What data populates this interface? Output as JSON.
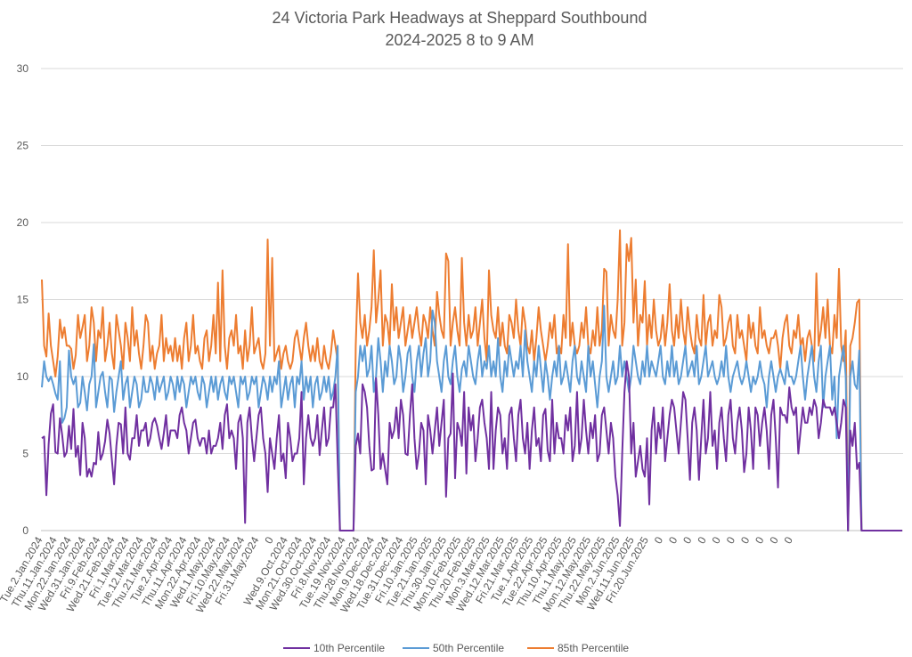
{
  "chart_data": {
    "type": "line",
    "title": "24 Victoria Park Headways at Sheppard Southbound",
    "subtitle": "2024-2025 8 to 9 AM",
    "xlabel": "",
    "ylabel": "",
    "ylim": [
      0,
      30
    ],
    "yticks": [
      0,
      5,
      10,
      15,
      20,
      25,
      30
    ],
    "grid": true,
    "legend_position": "bottom",
    "x_tick_labels": [
      "Tue.2.Jan.2024",
      "Thu.11.Jan.2024",
      "Mon.22.Jan.2024",
      "Wed.31.Jan.2024",
      "Fri.9.Feb.2024",
      "Wed.21.Feb.2024",
      "Fri.1.Mar.2024",
      "Tue.12.Mar.2024",
      "Thu.21.Mar.2024",
      "Tue.2.Apr.2024",
      "Thu.11.Apr.2024",
      "Mon.22.Apr.2024",
      "Wed.1.May.2024",
      "Fri.10.May.2024",
      "Wed.22.May.2024",
      "Fri.31.May.2024",
      "0",
      "Wed.9.Oct.2024",
      "Mon.21.Oct.2024",
      "Wed.30.Oct.2024",
      "Fri.8.Nov.2024",
      "Tue.19.Nov.2024",
      "Thu.28.Nov.2024",
      "Mon.9.Dec.2024",
      "Wed.18.Dec.2024",
      "Tue.31.Dec.2024",
      "Fri.10.Jan.2025",
      "Tue.21.Jan.2025",
      "Thu.30.Jan.2025",
      "Mon.10.Feb.2025",
      "Thu.20.Feb.2025",
      "Mon.3.Mar.2025",
      "Wed.12.Mar.2025",
      "Fri.21.Mar.2025",
      "Tue.1.Apr.2025",
      "Tue.22.Apr.2025",
      "Thu.10.Apr.2025",
      "Thu.1.May.2025",
      "Mon.12.May.2025",
      "Thu.22.May.2025",
      "Mon.2.Jun.2025",
      "Wed.11.Jun.2025",
      "Fri.20.Jun.2025",
      "0",
      "0",
      "0",
      "0",
      "0",
      "0",
      "0",
      "0",
      "0",
      "0"
    ],
    "series": [
      {
        "name": "10th Percentile",
        "color": "#7030A0",
        "values": [
          6.0,
          6.1,
          2.3,
          5.6,
          7.6,
          8.2,
          5.1,
          5.0,
          7.3,
          6.2,
          4.8,
          5.1,
          6.8,
          5.3,
          7.9,
          4.8,
          5.5,
          3.6,
          7.0,
          6.0,
          3.5,
          4.0,
          3.5,
          4.4,
          4.3,
          6.4,
          4.6,
          5.0,
          5.8,
          7.2,
          6.3,
          4.6,
          3.0,
          5.5,
          7.0,
          6.9,
          5.0,
          8.0,
          5.0,
          4.6,
          6.0,
          6.0,
          7.5,
          5.5,
          6.5,
          6.5,
          7.0,
          5.5,
          6.0,
          7.0,
          7.3,
          6.8,
          6.0,
          5.3,
          6.3,
          7.5,
          5.5,
          6.5,
          6.5,
          6.5,
          6.0,
          7.5,
          8.0,
          7.0,
          6.5,
          5.0,
          6.0,
          7.0,
          7.2,
          6.0,
          5.5,
          6.0,
          6.0,
          5.0,
          6.5,
          5.0,
          5.5,
          5.5,
          6.0,
          7.0,
          5.3,
          7.5,
          8.2,
          6.0,
          6.5,
          6.0,
          4.0,
          7.0,
          7.5,
          6.0,
          0.5,
          7.0,
          8.0,
          6.0,
          4.5,
          6.0,
          7.5,
          8.0,
          6.0,
          5.0,
          2.5,
          6.0,
          5.0,
          4.0,
          6.0,
          7.5,
          4.5,
          5.0,
          3.4,
          7.0,
          6.0,
          4.5,
          5.0,
          5.0,
          6.0,
          9.0,
          3.0,
          6.0,
          7.5,
          6.0,
          5.5,
          6.0,
          7.5,
          4.9,
          6.5,
          8.0,
          5.5,
          6.0,
          8.0,
          8.0,
          9.5,
          4.5,
          0.0,
          0.0,
          0.0,
          0.0,
          0.0,
          0.0,
          0.0,
          5.5,
          6.3,
          5.0,
          9.5,
          9.0,
          8.0,
          5.5,
          3.9,
          4.0,
          9.9,
          7.5,
          4.0,
          5.0,
          4.0,
          3.0,
          7.0,
          6.0,
          6.5,
          8.0,
          6.0,
          8.5,
          7.5,
          5.0,
          4.9,
          7.5,
          9.5,
          6.0,
          4.0,
          5.0,
          7.0,
          6.5,
          3.0,
          7.5,
          6.5,
          5.0,
          6.5,
          8.0,
          5.5,
          7.0,
          8.5,
          2.2,
          6.0,
          6.3,
          10.2,
          3.4,
          7.0,
          6.5,
          5.5,
          9.0,
          3.7,
          8.0,
          6.5,
          7.5,
          4.5,
          6.0,
          8.0,
          8.5,
          7.0,
          6.0,
          4.0,
          9.0,
          4.0,
          6.5,
          8.0,
          7.5,
          5.0,
          6.0,
          4.0,
          7.5,
          8.0,
          6.0,
          4.5,
          7.5,
          8.5,
          6.0,
          5.0,
          7.0,
          4.0,
          6.5,
          8.0,
          5.5,
          6.0,
          4.5,
          7.5,
          7.9,
          5.2,
          4.5,
          8.5,
          5.0,
          7.0,
          6.0,
          6.0,
          5.0,
          7.5,
          6.5,
          8.0,
          4.5,
          5.5,
          9.0,
          5.0,
          6.0,
          8.5,
          6.5,
          5.0,
          7.0,
          6.0,
          7.5,
          4.5,
          5.0,
          7.5,
          8.0,
          6.5,
          5.0,
          7.0,
          6.0,
          3.5,
          2.3,
          0.3,
          5.0,
          9.0,
          11.0,
          10.0,
          5.0,
          7.0,
          3.5,
          4.5,
          5.5,
          4.0,
          3.5,
          6.0,
          1.7,
          6.5,
          8.0,
          5.0,
          7.0,
          6.0,
          8.0,
          4.5,
          6.0,
          7.5,
          8.5,
          8.0,
          6.5,
          5.0,
          7.0,
          9.0,
          8.5,
          6.0,
          3.3,
          7.0,
          8.0,
          6.5,
          3.3,
          6.0,
          8.5,
          5.0,
          6.0,
          9.0,
          5.5,
          6.5,
          4.0,
          7.0,
          8.0,
          6.0,
          4.5,
          7.5,
          8.5,
          6.0,
          5.0,
          7.0,
          8.0,
          6.5,
          3.8,
          5.0,
          8.0,
          6.5,
          4.0,
          8.0,
          7.5,
          5.5,
          7.0,
          8.0,
          6.5,
          4.0,
          7.5,
          8.5,
          6.0,
          2.8,
          8.0,
          7.5,
          7.5,
          7.0,
          9.3,
          8.0,
          7.5,
          8.0,
          5.0,
          6.5,
          8.0,
          7.0,
          7.0,
          8.0,
          7.5,
          8.5,
          8.0,
          6.0,
          7.0,
          8.5,
          8.0,
          8.0,
          8.0,
          7.5,
          8.0,
          7.0,
          6.0,
          7.0,
          8.5,
          8.0,
          0.0,
          6.5,
          5.5,
          7.0,
          4.0,
          4.4,
          0.0
        ]
      },
      {
        "name": "50th Percentile",
        "color": "#5B9BD5",
        "values": [
          9.3,
          11.0,
          10.0,
          9.7,
          10.0,
          9.5,
          8.9,
          8.5,
          11.0,
          7.0,
          7.3,
          8.0,
          11.7,
          10.0,
          9.5,
          10.0,
          8.0,
          8.3,
          10.0,
          9.0,
          7.8,
          9.5,
          10.0,
          12.1,
          8.0,
          9.0,
          10.0,
          10.3,
          9.0,
          8.0,
          10.0,
          9.8,
          7.7,
          9.0,
          10.0,
          11.0,
          8.5,
          9.5,
          10.0,
          8.0,
          9.0,
          10.0,
          9.5,
          8.0,
          8.5,
          10.0,
          9.0,
          9.0,
          10.0,
          9.5,
          8.5,
          10.0,
          9.0,
          9.5,
          10.0,
          8.5,
          9.0,
          10.0,
          9.5,
          8.5,
          10.0,
          9.0,
          10.0,
          9.5,
          8.0,
          9.0,
          10.0,
          9.5,
          10.0,
          9.0,
          8.5,
          10.0,
          9.5,
          8.0,
          9.0,
          10.0,
          9.0,
          10.0,
          8.5,
          9.5,
          10.0,
          9.0,
          8.5,
          10.0,
          9.5,
          10.0,
          9.0,
          8.0,
          10.0,
          9.5,
          10.0,
          8.5,
          9.0,
          10.0,
          9.5,
          10.0,
          8.0,
          9.0,
          10.0,
          9.5,
          8.5,
          10.0,
          9.0,
          10.0,
          9.5,
          11.0,
          8.0,
          9.0,
          10.0,
          8.5,
          9.5,
          10.0,
          8.0,
          10.0,
          9.5,
          11.0,
          8.5,
          10.0,
          9.0,
          10.0,
          8.0,
          9.5,
          10.0,
          8.5,
          9.0,
          10.0,
          9.0,
          10.0,
          8.5,
          9.0,
          10.0,
          12.0,
          0.0,
          0.0,
          0.0,
          0.0,
          0.0,
          0.0,
          0.0,
          9.0,
          10.0,
          12.0,
          11.0,
          12.0,
          10.0,
          10.5,
          12.0,
          9.0,
          10.0,
          12.5,
          11.0,
          9.0,
          11.0,
          10.0,
          12.0,
          11.0,
          9.5,
          10.0,
          12.0,
          11.0,
          9.0,
          10.0,
          11.5,
          12.0,
          10.0,
          9.0,
          11.0,
          12.0,
          10.0,
          11.5,
          12.5,
          10.0,
          11.0,
          14.3,
          13.5,
          11.0,
          10.0,
          9.0,
          11.0,
          12.0,
          10.0,
          9.5,
          11.0,
          12.0,
          10.0,
          9.0,
          10.5,
          11.0,
          10.0,
          12.0,
          11.0,
          10.0,
          9.5,
          11.0,
          12.0,
          10.0,
          11.0,
          10.5,
          12.0,
          10.0,
          11.0,
          10.0,
          12.5,
          10.0,
          9.0,
          11.0,
          10.0,
          12.0,
          11.0,
          10.0,
          11.0,
          10.5,
          12.0,
          10.0,
          13.0,
          11.0,
          10.0,
          9.0,
          11.0,
          10.0,
          12.0,
          10.5,
          9.0,
          11.0,
          10.0,
          8.5,
          10.0,
          11.0,
          10.0,
          12.0,
          9.5,
          10.0,
          11.0,
          10.0,
          9.0,
          11.0,
          12.0,
          10.0,
          9.5,
          11.0,
          10.0,
          9.0,
          12.0,
          10.0,
          11.0,
          9.5,
          8.0,
          10.0,
          11.0,
          14.6,
          10.0,
          9.0,
          10.0,
          11.0,
          9.5,
          10.0,
          12.0,
          10.0,
          11.0,
          10.0,
          9.0,
          10.0,
          12.0,
          11.0,
          10.0,
          9.5,
          11.0,
          10.0,
          12.0,
          10.0,
          11.0,
          10.5,
          10.0,
          11.0,
          12.0,
          10.0,
          9.5,
          11.0,
          10.0,
          12.0,
          10.0,
          11.0,
          9.5,
          10.0,
          11.0,
          12.0,
          10.0,
          10.5,
          11.0,
          10.0,
          12.0,
          9.5,
          10.0,
          11.0,
          12.0,
          10.0,
          10.5,
          11.0,
          10.0,
          9.5,
          10.0,
          11.0,
          10.0,
          12.0,
          10.0,
          9.0,
          10.0,
          10.5,
          11.0,
          10.0,
          9.5,
          10.0,
          11.0,
          10.0,
          9.0,
          10.0,
          9.5,
          10.0,
          11.0,
          10.0,
          9.5,
          8.0,
          10.0,
          11.0,
          10.0,
          9.0,
          10.0,
          10.5,
          10.0,
          9.5,
          11.0,
          10.0,
          10.0,
          9.5,
          10.0,
          11.0,
          12.0,
          10.0,
          8.5,
          10.0,
          11.0,
          12.0,
          10.0,
          9.0,
          11.0,
          12.0,
          8.0,
          10.0,
          11.0,
          12.0,
          8.5,
          10.0,
          6.0,
          10.0,
          11.0,
          12.0,
          10.0,
          0.0,
          10.0,
          11.0,
          9.5,
          9.2,
          11.7,
          0.0
        ]
      },
      {
        "name": "85th Percentile",
        "color": "#ED7D31",
        "values": [
          16.3,
          12.0,
          11.3,
          14.1,
          12.0,
          11.0,
          10.0,
          11.3,
          13.7,
          12.5,
          13.2,
          12.0,
          12.0,
          11.8,
          10.5,
          11.4,
          14.0,
          12.5,
          13.2,
          14.0,
          11.0,
          12.0,
          14.5,
          13.5,
          11.0,
          13.0,
          12.5,
          14.5,
          11.0,
          12.0,
          13.5,
          11.5,
          10.5,
          14.0,
          13.0,
          12.0,
          10.5,
          13.5,
          12.5,
          11.0,
          14.5,
          12.0,
          13.0,
          11.5,
          10.5,
          12.0,
          14.0,
          13.5,
          11.0,
          12.0,
          10.5,
          11.5,
          12.0,
          14.0,
          11.0,
          12.5,
          11.5,
          12.0,
          11.0,
          12.5,
          11.0,
          12.0,
          10.5,
          12.5,
          13.5,
          11.0,
          12.0,
          14.0,
          11.5,
          12.0,
          11.0,
          10.5,
          12.5,
          13.0,
          11.0,
          12.0,
          14.0,
          11.5,
          16.1,
          11.0,
          16.9,
          12.0,
          10.5,
          12.5,
          13.0,
          12.0,
          14.0,
          11.5,
          12.0,
          10.5,
          13.0,
          11.0,
          12.0,
          14.5,
          11.5,
          12.0,
          12.5,
          11.0,
          10.5,
          11.5,
          18.9,
          12.0,
          17.7,
          11.0,
          11.5,
          12.0,
          10.5,
          11.5,
          12.0,
          11.0,
          10.5,
          11.0,
          12.5,
          13.0,
          12.0,
          11.0,
          12.5,
          13.5,
          12.0,
          11.0,
          12.0,
          11.0,
          12.5,
          11.0,
          10.5,
          12.0,
          11.0,
          10.5,
          11.5,
          13.0,
          12.0,
          11.0,
          0.0,
          0.0,
          0.0,
          0.0,
          0.0,
          0.0,
          0.0,
          12.0,
          16.7,
          13.5,
          12.5,
          14.0,
          12.0,
          13.0,
          14.5,
          18.2,
          13.5,
          15.0,
          16.9,
          12.0,
          14.0,
          13.5,
          12.0,
          16.0,
          13.0,
          14.5,
          12.5,
          13.5,
          14.5,
          12.0,
          13.0,
          14.0,
          12.5,
          13.5,
          14.5,
          13.0,
          12.0,
          14.0,
          13.5,
          12.5,
          14.5,
          13.0,
          12.0,
          15.5,
          14.0,
          13.0,
          12.5,
          18.0,
          17.5,
          12.0,
          13.5,
          14.5,
          13.0,
          12.0,
          17.7,
          13.5,
          12.0,
          14.0,
          12.5,
          13.0,
          14.5,
          12.0,
          13.5,
          15.0,
          12.5,
          11.0,
          16.9,
          14.0,
          13.0,
          12.5,
          14.5,
          12.0,
          13.5,
          12.0,
          11.5,
          14.0,
          13.5,
          12.5,
          15.0,
          13.0,
          12.0,
          14.5,
          13.5,
          12.0,
          11.5,
          13.0,
          11.0,
          12.5,
          14.5,
          13.0,
          12.0,
          11.0,
          12.0,
          13.5,
          12.5,
          14.0,
          11.5,
          12.0,
          11.5,
          14.0,
          12.5,
          18.6,
          12.0,
          13.5,
          12.0,
          11.5,
          12.0,
          13.5,
          12.5,
          14.5,
          12.0,
          11.5,
          13.0,
          12.0,
          14.5,
          12.0,
          13.0,
          17.0,
          16.8,
          12.0,
          14.0,
          13.0,
          12.5,
          15.0,
          19.5,
          12.0,
          13.5,
          18.6,
          17.5,
          19.0,
          13.5,
          16.3,
          12.0,
          14.0,
          13.5,
          16.2,
          12.0,
          14.0,
          12.5,
          15.0,
          13.0,
          12.0,
          12.5,
          14.0,
          12.0,
          13.5,
          16.0,
          13.0,
          12.0,
          14.0,
          12.5,
          15.0,
          13.0,
          12.0,
          14.5,
          13.0,
          12.0,
          11.5,
          14.0,
          12.5,
          12.0,
          15.3,
          12.0,
          13.5,
          14.0,
          12.0,
          13.0,
          12.5,
          15.3,
          14.5,
          12.0,
          12.5,
          13.5,
          14.0,
          12.0,
          11.5,
          14.0,
          12.5,
          13.0,
          12.0,
          11.0,
          14.0,
          12.5,
          13.5,
          12.0,
          11.5,
          14.5,
          12.5,
          13.0,
          12.0,
          11.5,
          12.5,
          12.5,
          13.0,
          12.0,
          10.5,
          12.5,
          13.5,
          14.0,
          12.0,
          11.5,
          13.0,
          12.5,
          14.0,
          12.0,
          12.5,
          11.0,
          12.5,
          13.0,
          12.0,
          11.0,
          16.7,
          12.0,
          13.0,
          14.5,
          12.5,
          15.0,
          12.0,
          11.5,
          14.0,
          12.5,
          17.0,
          12.0,
          11.0,
          13.0,
          0.0,
          12.0,
          12.5,
          13.5,
          14.8,
          15.0,
          0.0
        ]
      }
    ],
    "trailing_zero_points": 18
  }
}
